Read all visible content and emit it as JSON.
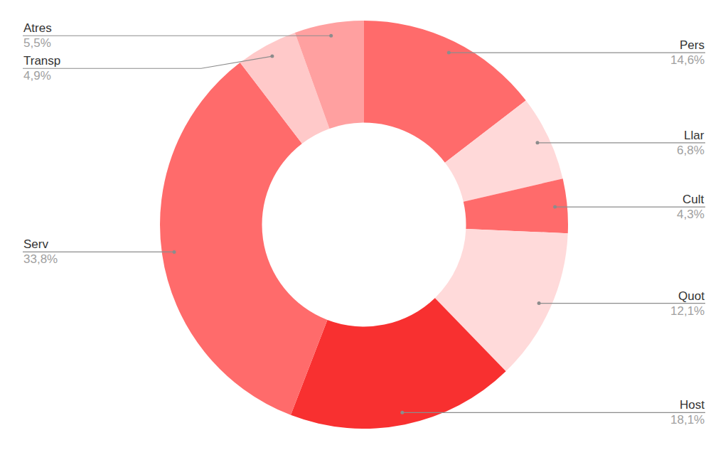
{
  "chart_data": {
    "type": "pie",
    "categories": [
      "Pers",
      "Llar",
      "Cult",
      "Quot",
      "Host",
      "Serv",
      "Transp",
      "Atres"
    ],
    "values": [
      14.6,
      6.8,
      4.3,
      12.1,
      18.1,
      33.8,
      4.9,
      5.5
    ],
    "value_labels": [
      "14,6%",
      "6,8%",
      "4,3%",
      "12,1%",
      "18,1%",
      "33,8%",
      "4,9%",
      "5,5%"
    ],
    "colors": [
      "#ff6b6b",
      "#ffd9d9",
      "#ff6b6b",
      "#ffdada",
      "#f83030",
      "#ff6b6b",
      "#ffc9c9",
      "#ffa0a0"
    ],
    "data_labels": true
  }
}
